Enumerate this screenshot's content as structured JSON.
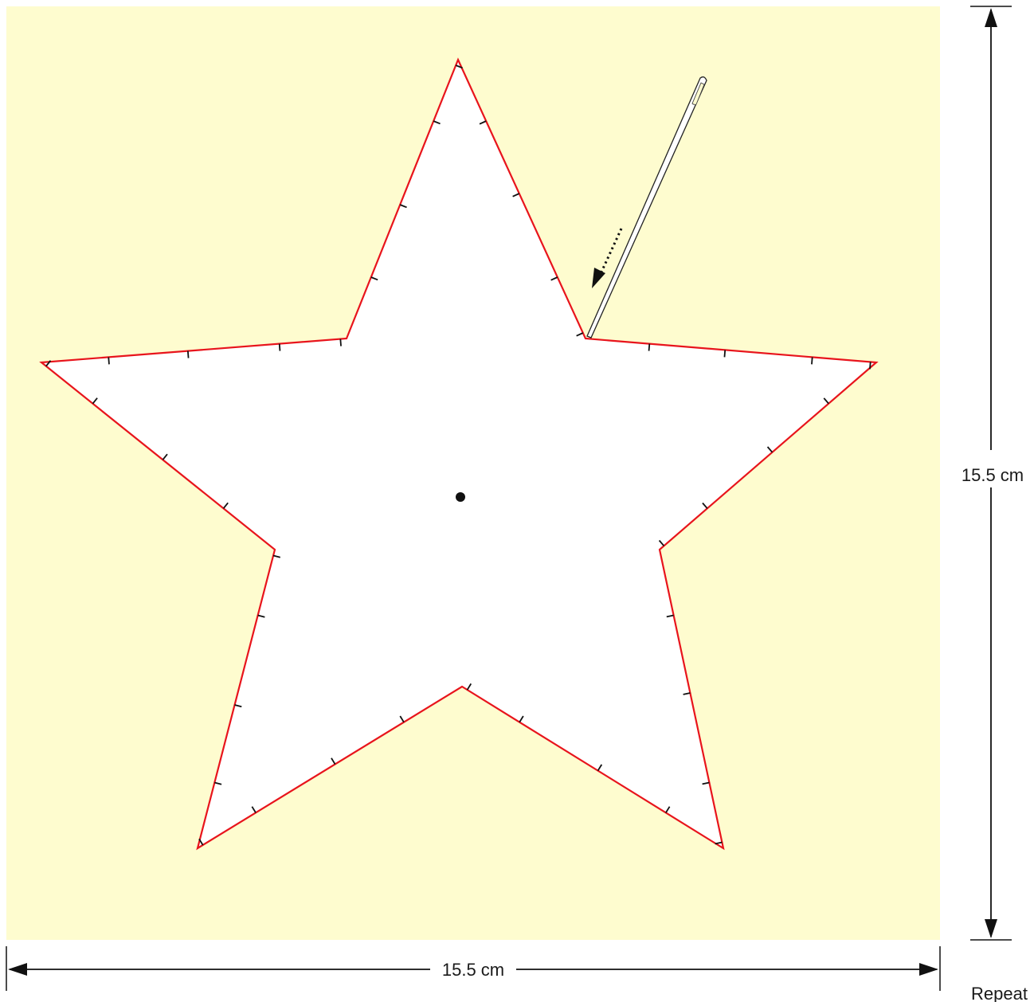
{
  "colors": {
    "fabric": "#fefccf",
    "star_fill": "#ffffff",
    "star_outline": "#e8141c",
    "marks": "#111111"
  },
  "icons": {
    "needle": "needle-icon",
    "arrow": "dotted-arrow-icon",
    "center": "center-dot-icon"
  },
  "dimensions": {
    "width_label": "15.5 cm",
    "height_label": "15.5 cm"
  },
  "footer": {
    "repeat_label": "Repeat"
  }
}
